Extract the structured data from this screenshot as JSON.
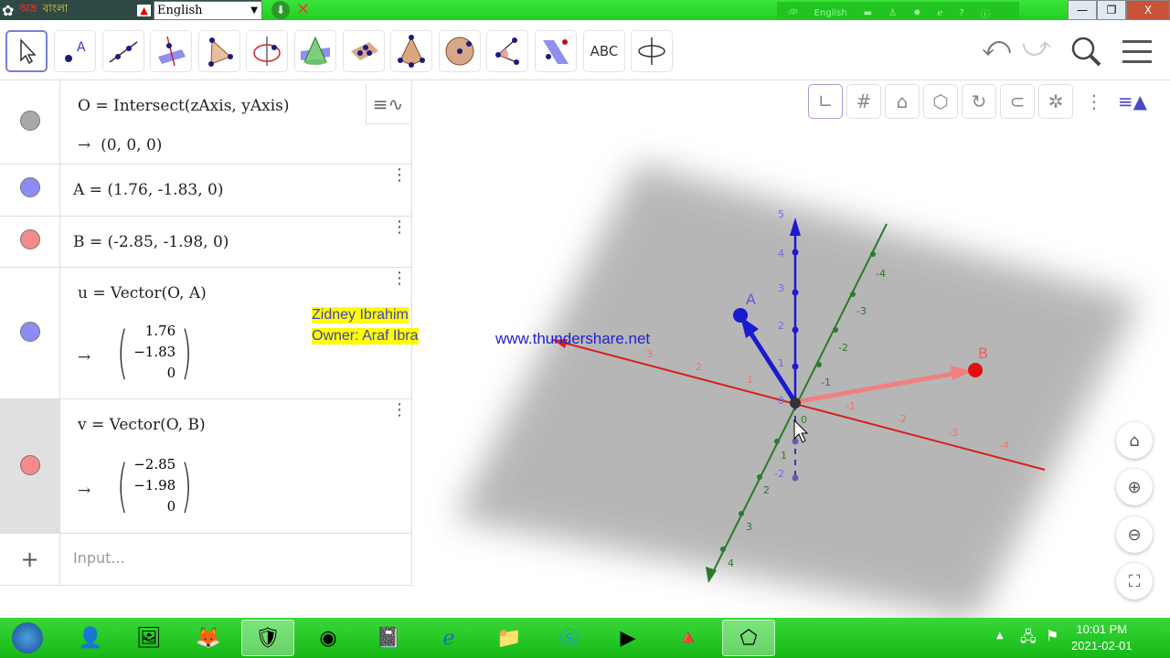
{
  "topbar": {
    "bangla_1": "অভ্র",
    "bangla_2": "বাংলা",
    "language": "English",
    "tray_language": "English",
    "minimize": "—",
    "restore": "❐",
    "close": "X"
  },
  "toolbar": {
    "text_tool": "ABC",
    "undo": "⤺",
    "redo": "⤻"
  },
  "algebra": {
    "rows": [
      {
        "name": "O",
        "definition": "O = Intersect(zAxis, yAxis)",
        "value": "(0, 0, 0)",
        "color": "#a8a8a8"
      },
      {
        "name": "A",
        "definition": "A = (1.76, -1.83, 0)",
        "color": "#8c8cf5"
      },
      {
        "name": "B",
        "definition": "B = (-2.85, -1.98, 0)",
        "color": "#f58a8a"
      },
      {
        "name": "u",
        "definition": "u = Vector(O, A)",
        "value": [
          "1.76",
          "−1.83",
          "0"
        ],
        "color": "#8c8cf5"
      },
      {
        "name": "v",
        "definition": "v = Vector(O, B)",
        "value": [
          "−2.85",
          "−1.98",
          "0"
        ],
        "color": "#f58a8a"
      }
    ],
    "arrow": "→",
    "add": "+",
    "input_placeholder": "Input..."
  },
  "watermark": {
    "line1": "Zidney Ibrahim",
    "line2": "Owner: Araf Ibrahim",
    "url": "www.thundershare.net"
  },
  "graphics": {
    "points": {
      "A": "A",
      "B": "B"
    },
    "x_ticks": [
      "3",
      "2",
      "1",
      "-1",
      "-2",
      "-3",
      "-4"
    ],
    "y_ticks": [
      "-4",
      "-3",
      "-2",
      "-1",
      "0",
      "1",
      "2",
      "3",
      "4"
    ],
    "z_ticks": [
      "5",
      "4",
      "3",
      "2",
      "1",
      "0",
      "-2"
    ],
    "colors": {
      "x_axis": "#d42020",
      "y_axis": "#2a7a2a",
      "z_axis": "#1a1ad0",
      "point_A": "#1a1ad0",
      "point_B": "#e01010"
    }
  },
  "taskbar": {
    "time": "10:01 PM",
    "date": "2021-02-01"
  }
}
